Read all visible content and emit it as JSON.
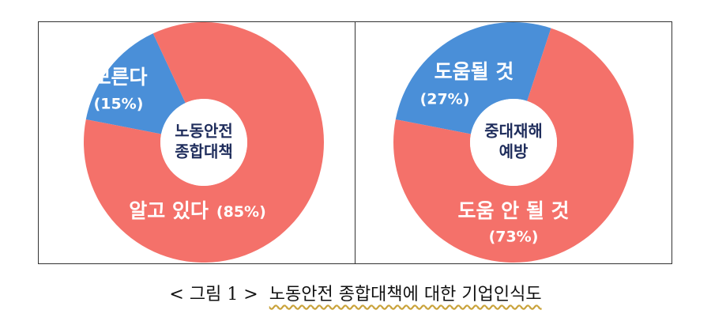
{
  "chart_data": [
    {
      "type": "donut",
      "center_label": [
        "노동안전",
        "종합대책"
      ],
      "categories": [
        "모른다",
        "알고 있다"
      ],
      "values": [
        15,
        85
      ],
      "value_labels": [
        "(15%)",
        "(85%)"
      ],
      "colors": [
        "#4a8fd8",
        "#f4716a"
      ]
    },
    {
      "type": "donut",
      "center_label": [
        "중대재해",
        "예방"
      ],
      "categories": [
        "도움될 것",
        "도움 안 될 것"
      ],
      "values": [
        27,
        73
      ],
      "value_labels": [
        "(27%)",
        "(73%)"
      ],
      "colors": [
        "#4a8fd8",
        "#f4716a"
      ]
    }
  ],
  "caption": {
    "label": "< 그림 1 >",
    "text": "노동안전 종합대책에 대한 기업인식도"
  }
}
